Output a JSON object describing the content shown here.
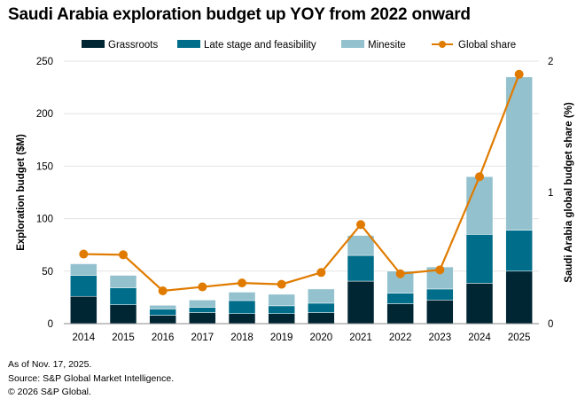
{
  "title": "Saudi Arabia exploration budget up YOY from 2022 onward",
  "footnotes": [
    "As of Nov. 17, 2025.",
    "Source: S&P Global Market Intelligence.",
    "© 2026 S&P Global."
  ],
  "chart_data": {
    "type": "bar",
    "stacked": true,
    "categories": [
      "2014",
      "2015",
      "2016",
      "2017",
      "2018",
      "2019",
      "2020",
      "2021",
      "2022",
      "2023",
      "2024",
      "2025"
    ],
    "ylabel": "Exploration budget ($M)",
    "ylim": [
      0,
      250
    ],
    "yticks": [
      0,
      50,
      100,
      150,
      200,
      250
    ],
    "y2label": "Saudi Arabia global budget share (%)",
    "y2lim": [
      0,
      2
    ],
    "y2ticks": [
      0,
      1,
      2
    ],
    "grid": true,
    "legend_position": "top",
    "series": [
      {
        "name": "Grassroots",
        "type": "bar",
        "axis": "left",
        "color": "#002633",
        "values": [
          26,
          18,
          8,
          10.5,
          9.5,
          9.5,
          10.5,
          40.5,
          19,
          22.5,
          38.5,
          50
        ]
      },
      {
        "name": "Late stage and feasibility",
        "type": "bar",
        "axis": "left",
        "color": "#006E8A",
        "values": [
          20,
          16,
          6,
          5,
          12.5,
          7.5,
          9,
          24.5,
          10,
          10.5,
          46.5,
          39
        ]
      },
      {
        "name": "Minesite",
        "type": "bar",
        "axis": "left",
        "color": "#93C1CE",
        "values": [
          11,
          12,
          3.5,
          7,
          8,
          11,
          13.5,
          19,
          21,
          21,
          55,
          146
        ]
      },
      {
        "name": "Global share",
        "type": "line",
        "axis": "right",
        "color": "#E07B00",
        "values": [
          0.53,
          0.525,
          0.25,
          0.28,
          0.31,
          0.3,
          0.39,
          0.755,
          0.38,
          0.41,
          1.12,
          1.9
        ]
      }
    ]
  }
}
